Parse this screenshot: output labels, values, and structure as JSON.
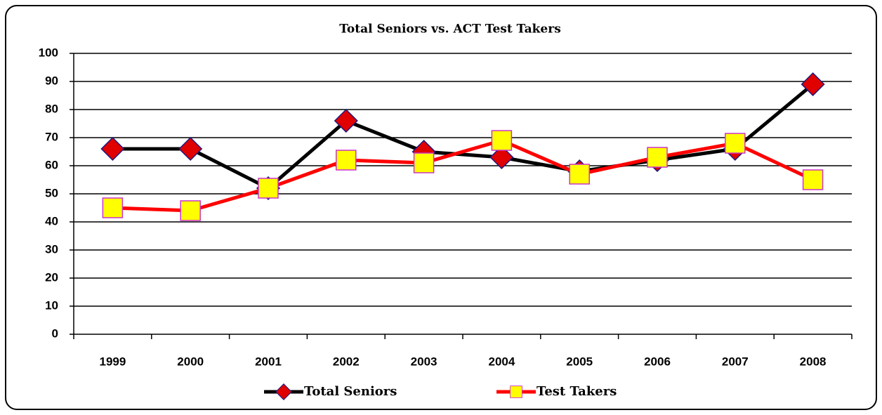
{
  "chart_data": {
    "type": "line",
    "title": "Total Seniors vs. ACT Test Takers",
    "categories": [
      "1999",
      "2000",
      "2001",
      "2002",
      "2003",
      "2004",
      "2005",
      "2006",
      "2007",
      "2008"
    ],
    "series": [
      {
        "name": "Total Seniors",
        "color": "#000000",
        "marker": "diamond",
        "marker_fill": "#e00000",
        "marker_edge": "#1a1a80",
        "values": [
          66,
          66,
          52,
          76,
          65,
          63,
          58,
          62,
          66,
          89
        ]
      },
      {
        "name": "Test Takers",
        "color": "#ff0000",
        "marker": "square",
        "marker_fill": "#ffff00",
        "marker_edge": "#cc33cc",
        "values": [
          45,
          44,
          52,
          62,
          61,
          69,
          57,
          63,
          68,
          55
        ]
      }
    ],
    "ylim": [
      0,
      100
    ],
    "yticks": [
      0,
      10,
      20,
      30,
      40,
      50,
      60,
      70,
      80,
      90,
      100
    ],
    "grid": true,
    "legend": "bottom"
  }
}
